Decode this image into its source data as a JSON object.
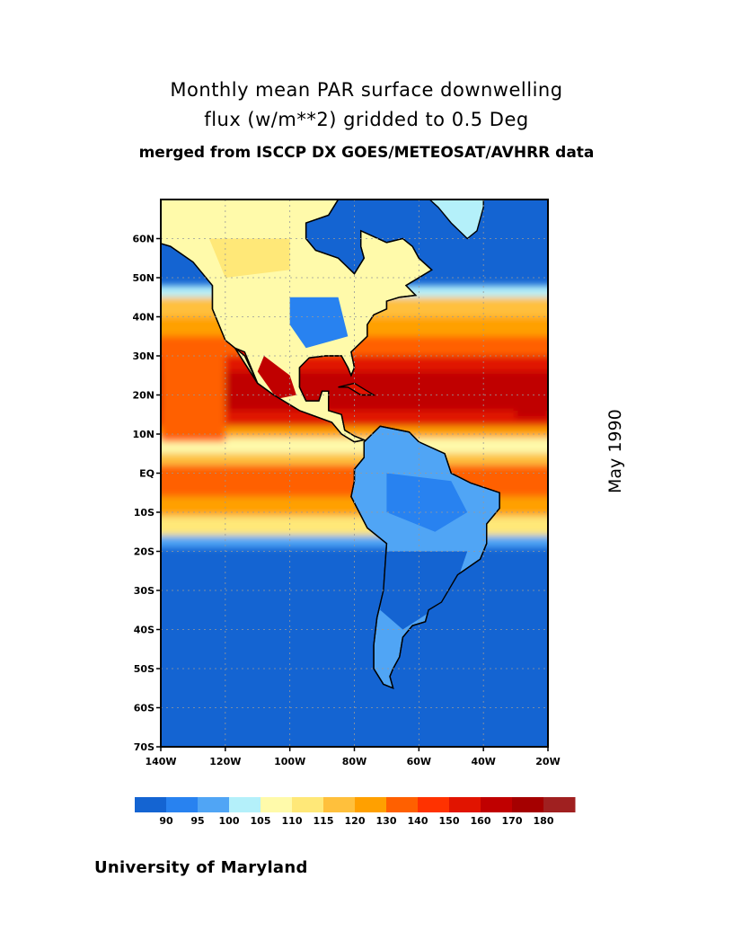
{
  "title": {
    "line1": "Monthly mean PAR surface downwelling",
    "line2": "flux (w/m**2) gridded to 0.5 Deg",
    "line3": "merged from ISCCP DX GOES/METEOSAT/AVHRR data"
  },
  "date_label": "May 1990",
  "credit": "University of Maryland",
  "chart_data": {
    "type": "heatmap",
    "variable": "Monthly mean PAR surface downwelling flux (w/m**2)",
    "lon_range": [
      -140,
      -20
    ],
    "lat_range": [
      -70,
      70
    ],
    "x_ticks": [
      "140W",
      "120W",
      "100W",
      "80W",
      "60W",
      "40W",
      "20W"
    ],
    "y_ticks": [
      "60N",
      "50N",
      "40N",
      "30N",
      "20N",
      "10N",
      "EQ",
      "10S",
      "20S",
      "30S",
      "40S",
      "50S",
      "60S",
      "70S"
    ],
    "grid": true,
    "colorbar": {
      "labels": [
        "90",
        "95",
        "100",
        "105",
        "110",
        "115",
        "120",
        "130",
        "140",
        "150",
        "160",
        "170",
        "180"
      ],
      "colors": [
        "#1464d2",
        "#2882f0",
        "#50a5f5",
        "#b4f0fa",
        "#fffaaa",
        "#ffe878",
        "#ffc03c",
        "#ffa000",
        "#ff6000",
        "#ff3200",
        "#e11400",
        "#c00000",
        "#a50000",
        "#a02020"
      ],
      "placement": "bottom"
    }
  }
}
